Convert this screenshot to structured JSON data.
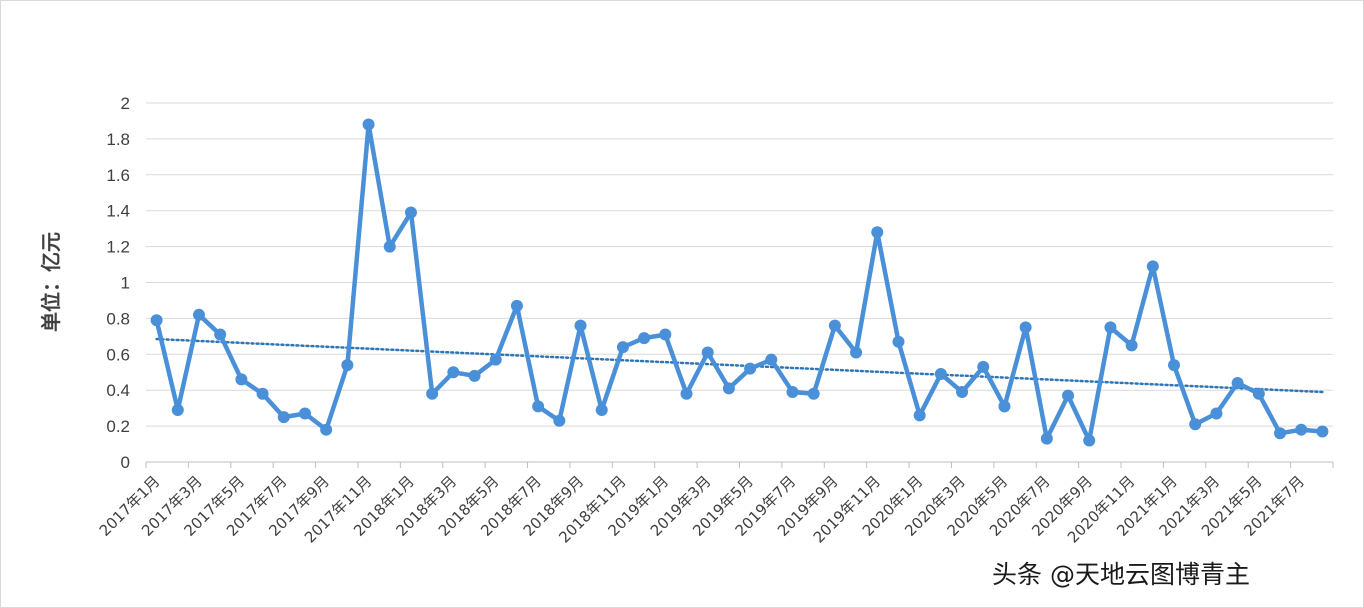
{
  "chart_data": {
    "type": "line",
    "title": "",
    "ylabel": "单位：亿元",
    "xlabel": "",
    "ylim": [
      0,
      2
    ],
    "yticks": [
      "0",
      "0.2",
      "0.4",
      "0.6",
      "0.8",
      "1",
      "1.2",
      "1.4",
      "1.6",
      "1.8",
      "2"
    ],
    "grid": true,
    "legend": "none",
    "categories": [
      "2017年1月",
      "2017年2月",
      "2017年3月",
      "2017年4月",
      "2017年5月",
      "2017年6月",
      "2017年7月",
      "2017年8月",
      "2017年9月",
      "2017年10月",
      "2017年11月",
      "2017年12月",
      "2018年1月",
      "2018年2月",
      "2018年3月",
      "2018年4月",
      "2018年5月",
      "2018年6月",
      "2018年7月",
      "2018年8月",
      "2018年9月",
      "2018年10月",
      "2018年11月",
      "2018年12月",
      "2019年1月",
      "2019年2月",
      "2019年3月",
      "2019年4月",
      "2019年5月",
      "2019年6月",
      "2019年7月",
      "2019年8月",
      "2019年9月",
      "2019年10月",
      "2019年11月",
      "2019年12月",
      "2020年1月",
      "2020年2月",
      "2020年3月",
      "2020年4月",
      "2020年5月",
      "2020年6月",
      "2020年7月",
      "2020年8月",
      "2020年9月",
      "2020年10月",
      "2020年11月",
      "2020年12月",
      "2021年1月",
      "2021年2月",
      "2021年3月",
      "2021年4月",
      "2021年5月",
      "2021年6月",
      "2021年7月",
      "2021年8月"
    ],
    "xtick_labels": [
      "2017年1月",
      "2017年3月",
      "2017年5月",
      "2017年7月",
      "2017年9月",
      "2017年11月",
      "2018年1月",
      "2018年3月",
      "2018年5月",
      "2018年7月",
      "2018年9月",
      "2018年11月",
      "2019年1月",
      "2019年3月",
      "2019年5月",
      "2019年7月",
      "2019年9月",
      "2019年11月",
      "2020年1月",
      "2020年3月",
      "2020年5月",
      "2020年7月",
      "2020年9月",
      "2020年11月",
      "2021年1月",
      "2021年3月",
      "2021年5月",
      "2021年7月"
    ],
    "series": [
      {
        "values": [
          0.79,
          0.29,
          0.82,
          0.71,
          0.46,
          0.38,
          0.25,
          0.27,
          0.18,
          0.54,
          1.88,
          1.2,
          1.39,
          0.38,
          0.5,
          0.48,
          0.57,
          0.87,
          0.31,
          0.23,
          0.76,
          0.29,
          0.64,
          0.69,
          0.71,
          0.38,
          0.61,
          0.41,
          0.52,
          0.57,
          0.39,
          0.38,
          0.76,
          0.61,
          1.28,
          0.67,
          0.26,
          0.49,
          0.39,
          0.53,
          0.31,
          0.75,
          0.13,
          0.37,
          0.12,
          0.75,
          0.65,
          1.09,
          0.54,
          0.21,
          0.27,
          0.44,
          0.38,
          0.16,
          0.18,
          0.17
        ],
        "color": "#4a90d9"
      }
    ],
    "trendline": {
      "type": "linear",
      "style": "dotted",
      "color": "#2e75b6",
      "start": 0.685,
      "end": 0.39
    }
  },
  "watermark": "头条 @天地云图博青主",
  "colors": {
    "gridline": "#d9d9d9",
    "axis": "#bfbfbf",
    "line": "#4a90d9",
    "trend": "#2e75b6"
  }
}
